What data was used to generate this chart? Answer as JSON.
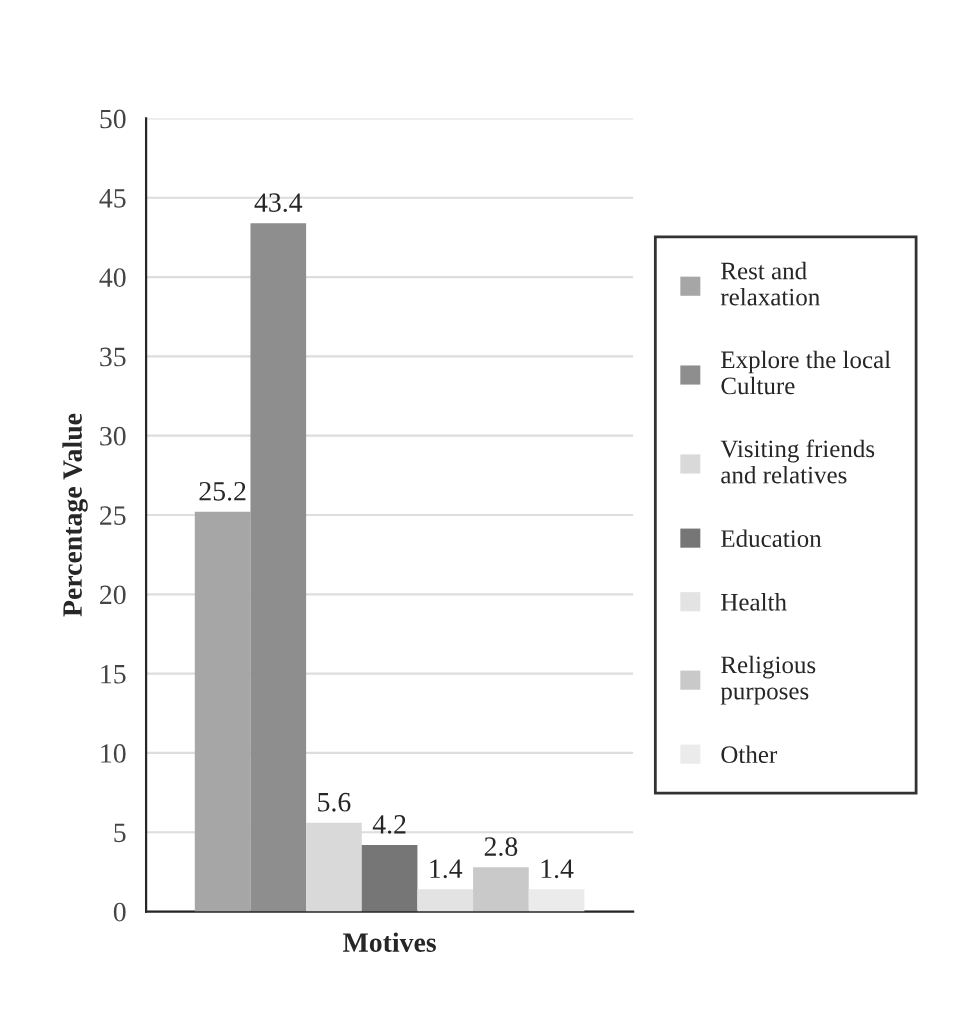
{
  "chart_data": {
    "type": "bar",
    "xlabel": "Motives",
    "ylabel": "Percentage Value",
    "categories": [
      null
    ],
    "series": [
      {
        "name": "Rest and\nrelaxation",
        "color": "#a6a6a6",
        "values": [
          25.2
        ]
      },
      {
        "name": "Explore the local\nCulture",
        "color": "#8e8e8e",
        "values": [
          43.4
        ]
      },
      {
        "name": "Visiting friends\nand relatives",
        "color": "#d9d9d9",
        "values": [
          5.6
        ]
      },
      {
        "name": "Education",
        "color": "#767676",
        "values": [
          4.2
        ]
      },
      {
        "name": "Health",
        "color": "#e3e3e3",
        "values": [
          1.4
        ]
      },
      {
        "name": "Religious\npurposes",
        "color": "#c9c9c9",
        "values": [
          2.8
        ]
      },
      {
        "name": "Other",
        "color": "#ebebeb",
        "values": [
          1.4
        ]
      }
    ],
    "ylim": [
      0,
      50
    ],
    "yticks": [
      0,
      5,
      10,
      15,
      20,
      25,
      30,
      35,
      40,
      45,
      50
    ],
    "grid": "y",
    "legend": "right",
    "data_labels": true
  }
}
